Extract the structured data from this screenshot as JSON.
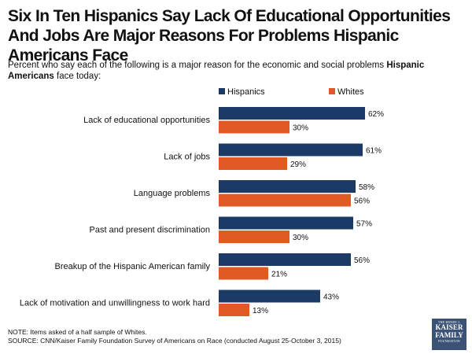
{
  "title": "Six In Ten Hispanics Say Lack Of Educational Opportunities And Jobs Are Major Reasons For Problems Hispanic Americans Face",
  "subtitle": {
    "before": "Percent who say each of the following is a major reason for the economic and social problems ",
    "bold": "Hispanic Americans",
    "after": " face today:"
  },
  "note": "NOTE: Items asked of a half sample of Whites.",
  "source": "SOURCE: CNN/Kaiser Family Foundation Survey of Americans on Race (conducted August 25-October 3, 2015)",
  "logo": {
    "top": "THE HENRY J.",
    "line1": "KAISER",
    "line2": "FAMILY",
    "bottom": "FOUNDATION"
  },
  "colors": {
    "hispanics": "#1b3a66",
    "whites": "#e05a25"
  },
  "chart_data": {
    "type": "bar",
    "orientation": "horizontal",
    "categories": [
      "Lack of educational opportunities",
      "Lack of jobs",
      "Language problems",
      "Past and present discrimination",
      "Breakup of the Hispanic American family",
      "Lack of motivation and unwillingness to work hard"
    ],
    "series": [
      {
        "name": "Hispanics",
        "values": [
          62,
          61,
          58,
          57,
          56,
          43
        ],
        "labels": [
          "62%",
          "61%",
          "58%",
          "57%",
          "56%",
          "43%"
        ]
      },
      {
        "name": "Whites",
        "values": [
          30,
          29,
          56,
          30,
          21,
          13
        ],
        "labels": [
          "30%",
          "29%",
          "56%",
          "30%",
          "21%",
          "13%"
        ]
      }
    ],
    "xlim": [
      0,
      100
    ],
    "grid": false,
    "legend": "top"
  }
}
